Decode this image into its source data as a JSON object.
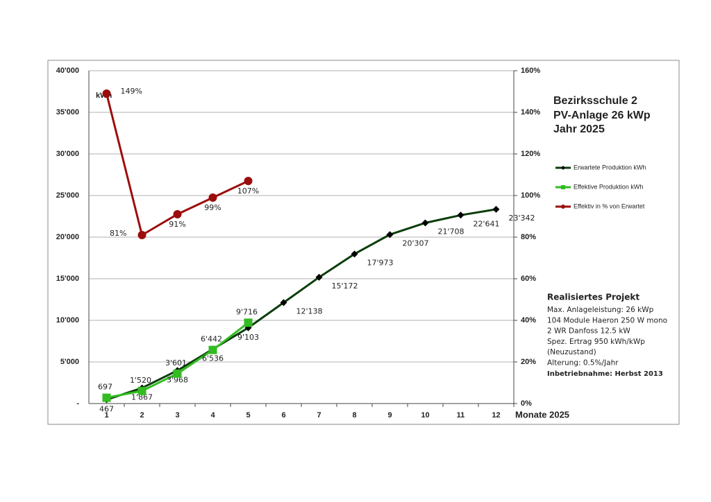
{
  "chart_data": {
    "type": "line",
    "title": [
      "Bezirksschule 2",
      "PV-Anlage 26 kWp",
      "Jahr 2025"
    ],
    "y_label": "kWh",
    "x_label": "Monate 2025",
    "categories": [
      "1",
      "2",
      "3",
      "4",
      "5",
      "6",
      "7",
      "8",
      "9",
      "10",
      "11",
      "12"
    ],
    "ylim": [
      0,
      40000
    ],
    "yticks": [
      {
        "value": 0,
        "label": "-"
      },
      {
        "value": 5000,
        "label": "5'000"
      },
      {
        "value": 10000,
        "label": "10'000"
      },
      {
        "value": 15000,
        "label": "15'000"
      },
      {
        "value": 20000,
        "label": "20'000"
      },
      {
        "value": 25000,
        "label": "25'000"
      },
      {
        "value": 30000,
        "label": "30'000"
      },
      {
        "value": 35000,
        "label": "35'000"
      },
      {
        "value": 40000,
        "label": "40'000"
      }
    ],
    "y2lim": [
      0,
      160
    ],
    "y2ticks": [
      {
        "value": 0,
        "label": "0%"
      },
      {
        "value": 20,
        "label": "20%"
      },
      {
        "value": 40,
        "label": "40%"
      },
      {
        "value": 60,
        "label": "60%"
      },
      {
        "value": 80,
        "label": "80%"
      },
      {
        "value": 100,
        "label": "100%"
      },
      {
        "value": 120,
        "label": "120%"
      },
      {
        "value": 140,
        "label": "140%"
      },
      {
        "value": 160,
        "label": "160%"
      }
    ],
    "grid": true,
    "legend": "right",
    "series": [
      {
        "name": "Erwartete Produktion kWh",
        "color": "#0b3d0b",
        "marker": "diamond",
        "values": [
          467,
          1867,
          3968,
          6536,
          9103,
          12138,
          15172,
          17973,
          20307,
          21708,
          22641,
          23342
        ],
        "value_labels": [
          "467",
          "1'867",
          "3'968",
          "6'536",
          "9'103",
          "12'138",
          "15'172",
          "17'973",
          "20'307",
          "21'708",
          "22'641",
          "23'342"
        ]
      },
      {
        "name": "Effektive Produktion kWh",
        "color": "#33bb22",
        "marker": "square",
        "values": [
          697,
          1520,
          3601,
          6442,
          9716,
          null,
          null,
          null,
          null,
          null,
          null,
          null
        ],
        "value_labels": [
          "697",
          "1'520",
          "3'601",
          "6'442",
          "9'716",
          null,
          null,
          null,
          null,
          null,
          null,
          null
        ]
      },
      {
        "name": "Effektiv in % von Erwartet",
        "color": "#9b0d0d",
        "marker": "circle",
        "axis": "y2",
        "values": [
          149,
          81,
          91,
          99,
          107,
          null,
          null,
          null,
          null,
          null,
          null,
          null
        ],
        "value_labels": [
          "149%",
          "81%",
          "91%",
          "99%",
          "107%",
          null,
          null,
          null,
          null,
          null,
          null,
          null
        ]
      }
    ],
    "info": {
      "heading": "Realisiertes Projekt",
      "lines": [
        "Max. Anlageleistung: 26 kWp",
        "104 Module Haeron 250 W mono",
        "2 WR Danfoss 12.5 kW",
        "Spez. Ertrag 950 kWh/kWp",
        "(Neuzustand)",
        "Alterung: 0.5%/Jahr"
      ],
      "footer": "Inbetriebnahme: Herbst 2013"
    }
  }
}
